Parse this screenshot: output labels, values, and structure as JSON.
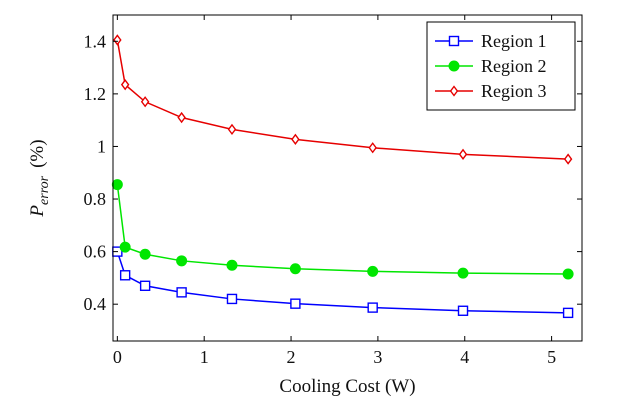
{
  "chart_data": {
    "type": "line",
    "title": "",
    "xlabel": "Cooling Cost (W)",
    "ylabel": {
      "symbol": "P",
      "subscript": "error",
      "unit": "(%)"
    },
    "xlim": [
      -0.05,
      5.35
    ],
    "ylim": [
      0.26,
      1.5
    ],
    "x_ticks": [
      0,
      1,
      2,
      3,
      4,
      5
    ],
    "y_ticks": [
      0.4,
      0.6,
      0.8,
      1,
      1.2,
      1.4
    ],
    "x_tick_labels": [
      "0",
      "1",
      "2",
      "3",
      "4",
      "5"
    ],
    "y_tick_labels": [
      "0.4",
      "0.6",
      "0.8",
      "1",
      "1.2",
      "1.4"
    ],
    "grid": false,
    "legend_position": "top-right",
    "x": [
      0,
      0.09,
      0.32,
      0.74,
      1.32,
      2.05,
      2.94,
      3.98,
      5.19
    ],
    "series": [
      {
        "name": "Region 1",
        "color": "#0000ff",
        "marker": "square-open",
        "values": [
          0.6,
          0.51,
          0.47,
          0.445,
          0.42,
          0.402,
          0.387,
          0.375,
          0.367
        ]
      },
      {
        "name": "Region 2",
        "color": "#00e600",
        "marker": "circle-filled",
        "values": [
          0.855,
          0.617,
          0.59,
          0.565,
          0.548,
          0.535,
          0.525,
          0.518,
          0.515
        ]
      },
      {
        "name": "Region 3",
        "color": "#e60000",
        "marker": "diamond-open",
        "values": [
          1.405,
          1.235,
          1.17,
          1.11,
          1.065,
          1.027,
          0.995,
          0.97,
          0.952
        ]
      }
    ]
  }
}
